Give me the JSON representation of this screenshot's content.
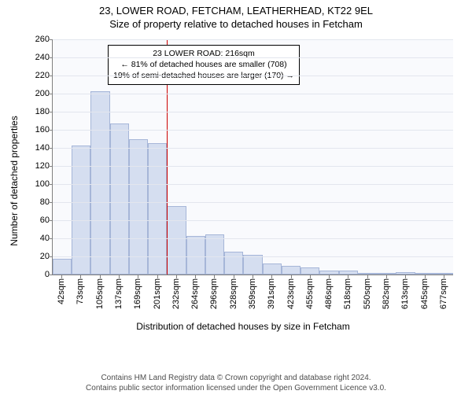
{
  "title_line1": "23, LOWER ROAD, FETCHAM, LEATHERHEAD, KT22 9EL",
  "title_line2": "Size of property relative to detached houses in Fetcham",
  "ylabel": "Number of detached properties",
  "xlabel": "Distribution of detached houses by size in Fetcham",
  "chart": {
    "type": "histogram",
    "ymax": 260,
    "ytick_step": 20,
    "bar_fill": "#d5def0",
    "bar_border": "#a6b6d8",
    "plot_bg": "#f9fafd",
    "grid_color": "#e3e6ee",
    "axis_color": "#7f7f7f",
    "marker_color": "#cc0000",
    "marker_x_category_index": 5.5,
    "bars": [
      {
        "label": "42sqm",
        "value": 17
      },
      {
        "label": "73sqm",
        "value": 143
      },
      {
        "label": "105sqm",
        "value": 203
      },
      {
        "label": "137sqm",
        "value": 167
      },
      {
        "label": "169sqm",
        "value": 150
      },
      {
        "label": "201sqm",
        "value": 145
      },
      {
        "label": "232sqm",
        "value": 76
      },
      {
        "label": "264sqm",
        "value": 43
      },
      {
        "label": "296sqm",
        "value": 44
      },
      {
        "label": "328sqm",
        "value": 25
      },
      {
        "label": "359sqm",
        "value": 22
      },
      {
        "label": "391sqm",
        "value": 12
      },
      {
        "label": "423sqm",
        "value": 10
      },
      {
        "label": "455sqm",
        "value": 8
      },
      {
        "label": "486sqm",
        "value": 4
      },
      {
        "label": "518sqm",
        "value": 4
      },
      {
        "label": "550sqm",
        "value": 2
      },
      {
        "label": "582sqm",
        "value": 1
      },
      {
        "label": "613sqm",
        "value": 3
      },
      {
        "label": "645sqm",
        "value": 1
      },
      {
        "label": "677sqm",
        "value": 2
      }
    ]
  },
  "annotation": {
    "line1": "23 LOWER ROAD: 216sqm",
    "line2": "← 81% of detached houses are smaller (708)",
    "line3": "19% of semi-detached houses are larger (170) →"
  },
  "footer": {
    "line1": "Contains HM Land Registry data © Crown copyright and database right 2024.",
    "line2": "Contains public sector information licensed under the Open Government Licence v3.0."
  }
}
